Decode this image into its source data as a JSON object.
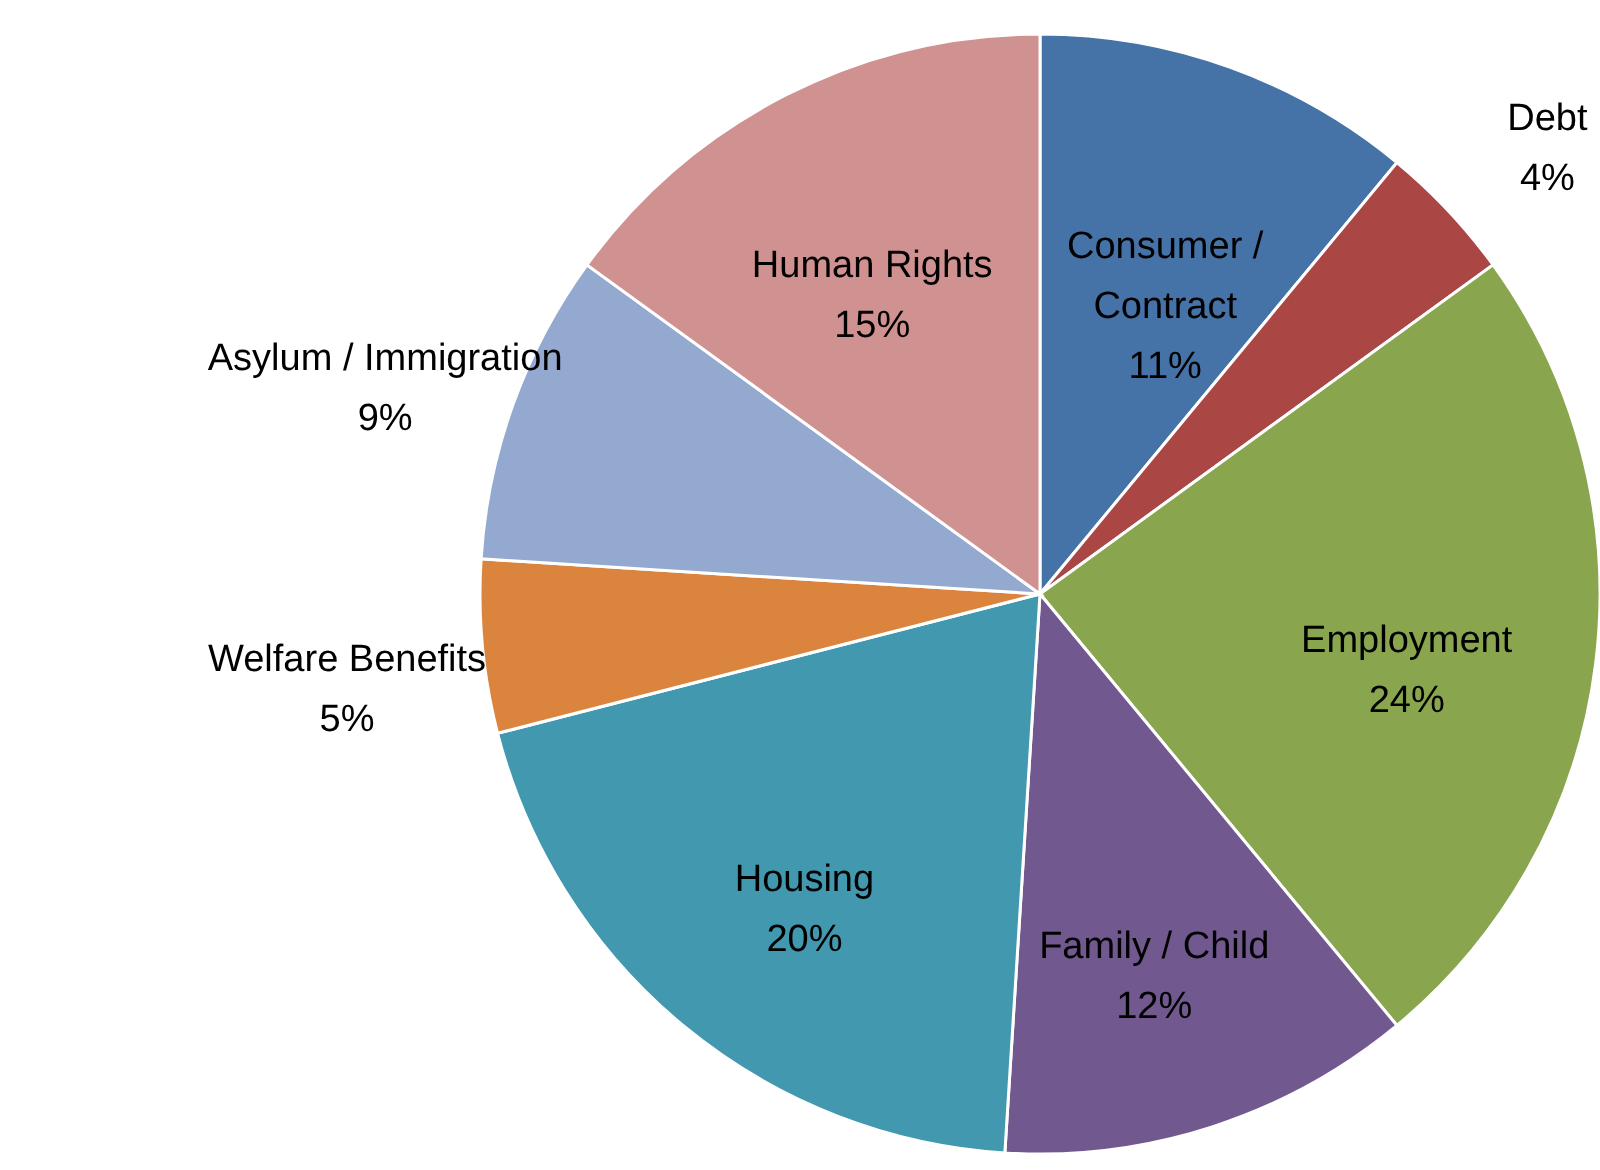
{
  "chart_data": {
    "type": "pie",
    "categories": [
      "Consumer / Contract",
      "Debt",
      "Employment",
      "Family / Child",
      "Housing",
      "Welfare Benefits",
      "Asylum / Immigration",
      "Human Rights"
    ],
    "values": [
      11,
      4,
      24,
      12,
      20,
      5,
      9,
      15
    ],
    "value_labels": [
      "11%",
      "4%",
      "24%",
      "12%",
      "20%",
      "5%",
      "9%",
      "15%"
    ],
    "colors": [
      "#4572a7",
      "#aa4643",
      "#89a54e",
      "#71588f",
      "#4198af",
      "#db843d",
      "#93a9cf",
      "#d09291"
    ]
  }
}
